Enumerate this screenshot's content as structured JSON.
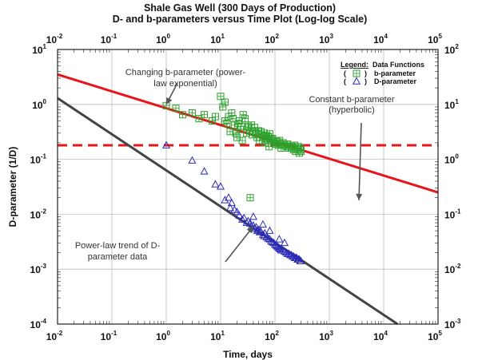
{
  "chart_data": {
    "type": "scatter",
    "title": "Shale Gas Well (300 Days of Production)",
    "subtitle": "D- and b-parameters versus Time Plot (Log-log Scale)",
    "xlabel": "Time, days",
    "ylabel": "D-parameter (1/D)",
    "xlim": [
      0.01,
      100000
    ],
    "ylim": [
      0.0001,
      10
    ],
    "y2lim": [
      0.001,
      100
    ],
    "xscale": "log",
    "yscale": "log",
    "grid": true,
    "legend_position": "top-right",
    "legend": {
      "heading_label": "Legend:",
      "heading_title": "Data Functions",
      "entries": [
        {
          "open": "(",
          "close": ")",
          "name": "b-parameter"
        },
        {
          "open": "(",
          "close": ")",
          "name": "D-parameter"
        }
      ]
    },
    "x_ticks": [
      {
        "base": "10",
        "exp": "-2"
      },
      {
        "base": "10",
        "exp": "-1"
      },
      {
        "base": "10",
        "exp": "0"
      },
      {
        "base": "10",
        "exp": "1"
      },
      {
        "base": "10",
        "exp": "2"
      },
      {
        "base": "10",
        "exp": "3"
      },
      {
        "base": "10",
        "exp": "4"
      },
      {
        "base": "10",
        "exp": "5"
      }
    ],
    "y_ticks": [
      {
        "base": "10",
        "exp": "-4"
      },
      {
        "base": "10",
        "exp": "-3"
      },
      {
        "base": "10",
        "exp": "-2"
      },
      {
        "base": "10",
        "exp": "-1"
      },
      {
        "base": "10",
        "exp": "0"
      },
      {
        "base": "10",
        "exp": "1"
      }
    ],
    "y2_ticks": [
      {
        "base": "10",
        "exp": "-3"
      },
      {
        "base": "10",
        "exp": "-2"
      },
      {
        "base": "10",
        "exp": "-1"
      },
      {
        "base": "10",
        "exp": "0"
      },
      {
        "base": "10",
        "exp": "1"
      },
      {
        "base": "10",
        "exp": "2"
      }
    ],
    "annotations": [
      {
        "text": [
          "Changing b-parameter (power-",
          "law exponential)"
        ],
        "arrow_to": [
          1.0,
          1.0
        ]
      },
      {
        "text": [
          "Constant b-parameter",
          "(hyperbolic)"
        ],
        "arrow_to": [
          3500,
          0.18
        ]
      },
      {
        "text": [
          "Power-law trend of D-",
          "parameter data"
        ],
        "arrow_to": [
          40,
          0.006
        ]
      }
    ],
    "colors": {
      "b_series": "#2ca02c",
      "d_series": "#2b2bb8",
      "b_trend": "#e8141a",
      "d_trend": "#444444",
      "constant_b": "#e8141a"
    },
    "lines": [
      {
        "role": "b-parameter power-law trend",
        "axis": "y2",
        "x": [
          0.01,
          100000
        ],
        "y": [
          35,
          0.25
        ],
        "style": "solid",
        "color": "#e8141a"
      },
      {
        "role": "constant b-parameter",
        "axis": "y2",
        "x": [
          0.01,
          100000
        ],
        "y": [
          1.8,
          1.8
        ],
        "style": "dashed",
        "color": "#e8141a"
      },
      {
        "role": "D-parameter power-law trend",
        "axis": "y",
        "x": [
          0.01,
          18000
        ],
        "y": [
          1.3,
          0.0001
        ],
        "style": "solid",
        "color": "#444444"
      }
    ],
    "series": [
      {
        "name": "b-parameter",
        "axis": "y2",
        "marker": "square-plus",
        "color": "#2ca02c",
        "x": [
          1.0,
          1.5,
          2.0,
          3.0,
          4.0,
          5.0,
          7.0,
          8.0,
          10,
          11,
          12,
          12,
          13,
          14,
          15,
          16,
          17,
          18,
          19,
          20,
          21,
          22,
          23,
          24,
          25,
          26,
          28,
          30,
          32,
          33,
          35,
          37,
          38,
          40,
          42,
          45,
          47,
          50,
          52,
          55,
          57,
          60,
          63,
          65,
          68,
          70,
          72,
          75,
          78,
          80,
          85,
          90,
          95,
          100,
          105,
          110,
          115,
          120,
          125,
          130,
          140,
          150,
          160,
          170,
          180,
          190,
          200,
          210,
          220,
          230,
          240,
          250,
          260,
          270,
          280,
          290,
          300,
          35,
          300
        ],
        "y": [
          9.5,
          8.5,
          6.5,
          7.0,
          5.5,
          6.5,
          5.0,
          6.0,
          14,
          9.0,
          11,
          5.0,
          4.5,
          6.0,
          3.2,
          7.0,
          5.5,
          4.2,
          3.0,
          2.5,
          4.5,
          5.0,
          3.5,
          4.0,
          2.2,
          6.5,
          5.5,
          3.0,
          4.0,
          3.8,
          3.3,
          4.2,
          2.8,
          3.2,
          3.8,
          3.0,
          2.5,
          3.3,
          2.2,
          3.2,
          2.8,
          2.6,
          3.0,
          2.0,
          2.7,
          2.4,
          2.2,
          2.6,
          1.7,
          2.9,
          2.3,
          2.4,
          2.0,
          2.2,
          1.9,
          2.1,
          1.8,
          2.2,
          1.9,
          1.6,
          2.0,
          1.8,
          1.7,
          1.9,
          1.6,
          1.8,
          1.6,
          1.7,
          1.5,
          1.8,
          1.4,
          1.6,
          1.5,
          1.7,
          1.3,
          1.6,
          1.5,
          0.2,
          1.4
        ]
      },
      {
        "name": "D-parameter",
        "axis": "y",
        "marker": "triangle",
        "color": "#2b2bb8",
        "x": [
          1.0,
          3.0,
          5.0,
          8.0,
          10,
          12,
          14,
          15,
          16,
          18,
          20,
          22,
          25,
          27,
          30,
          32,
          35,
          37,
          40,
          42,
          45,
          47,
          50,
          52,
          55,
          60,
          63,
          65,
          70,
          75,
          80,
          85,
          90,
          95,
          100,
          105,
          110,
          115,
          120,
          125,
          130,
          140,
          150,
          160,
          170,
          180,
          190,
          200,
          210,
          220,
          230,
          240,
          250,
          260,
          270,
          280,
          290,
          300,
          40,
          60,
          80,
          120,
          150
        ],
        "y": [
          0.18,
          0.095,
          0.06,
          0.035,
          0.032,
          0.018,
          0.02,
          0.013,
          0.016,
          0.012,
          0.011,
          0.0095,
          0.008,
          0.0085,
          0.007,
          0.0075,
          0.0068,
          0.006,
          0.0062,
          0.0055,
          0.0058,
          0.005,
          0.0052,
          0.0047,
          0.0048,
          0.0042,
          0.004,
          0.0045,
          0.0038,
          0.0036,
          0.0035,
          0.0032,
          0.0031,
          0.003,
          0.0028,
          0.0027,
          0.0026,
          0.0025,
          0.0024,
          0.0023,
          0.0022,
          0.0022,
          0.0021,
          0.002,
          0.0019,
          0.0019,
          0.0018,
          0.0018,
          0.0017,
          0.0017,
          0.0016,
          0.0016,
          0.0016,
          0.0015,
          0.0015,
          0.0015,
          0.0014,
          0.0014,
          0.009,
          0.0065,
          0.005,
          0.0035,
          0.003
        ]
      }
    ]
  }
}
